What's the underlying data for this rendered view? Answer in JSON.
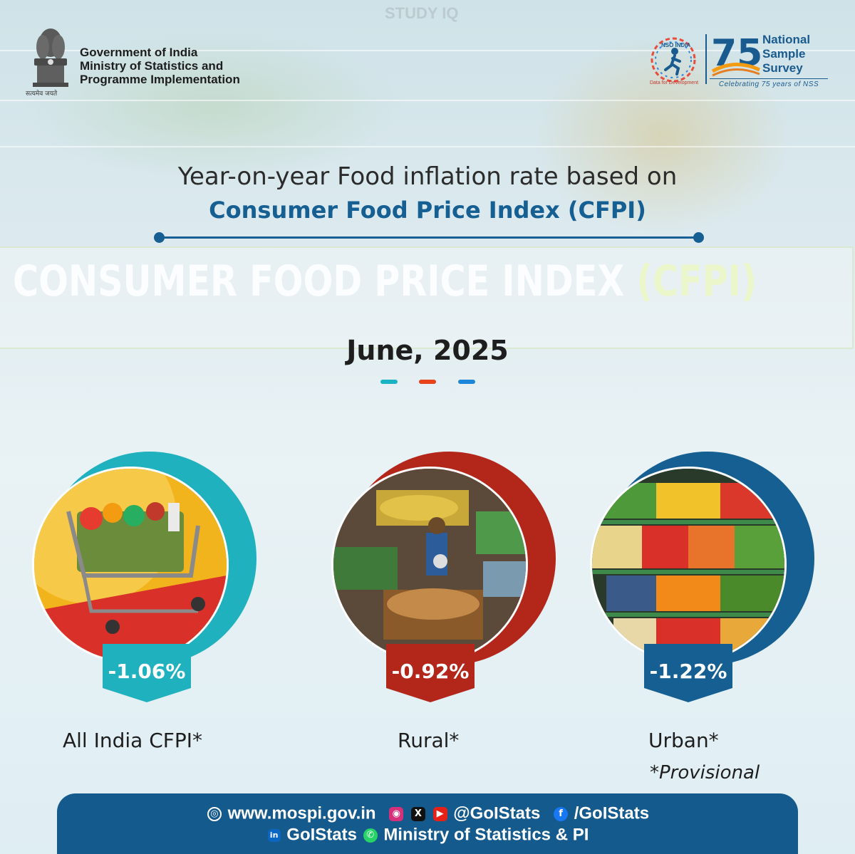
{
  "header": {
    "emblem_caption": "सत्यमेव जयते",
    "gov_lines": [
      "Government of India",
      "Ministry of Statistics and",
      "Programme Implementation"
    ],
    "nso_badge": "NSO INDIA",
    "nso_caption": "Data for Development",
    "nss_number": "75",
    "nss_lines": [
      "National",
      "Sample",
      "Survey"
    ],
    "nss_caption": "Celebrating 75 years of NSS",
    "watermark": "STUDY IQ"
  },
  "title": {
    "line1": "Year-on-year Food inflation rate based on",
    "line2": "Consumer Food Price Index (CFPI)"
  },
  "banner": {
    "main": "CONSUMER FOOD PRICE INDEX ",
    "accent": "(CFPI)"
  },
  "period": "June, 2025",
  "dash_colors": [
    "#19b3c4",
    "#e8431a",
    "#1c86d9"
  ],
  "cards": [
    {
      "value": "-1.06%",
      "label": "All India CFPI*",
      "color": "#1fb1be"
    },
    {
      "value": "-0.92%",
      "label": "Rural*",
      "color": "#b3271b"
    },
    {
      "value": "-1.22%",
      "label": "Urban*",
      "color": "#155f93"
    }
  ],
  "note": "*Provisional",
  "footer": {
    "website": "www.mospi.gov.in",
    "handle": "@GoIStats",
    "facebook": "/GoIStats",
    "linkedin": "GoIStats",
    "whatsapp": "Ministry of Statistics & PI",
    "icons": [
      "globe-icon",
      "instagram-icon",
      "x-icon",
      "youtube-icon",
      "facebook-icon",
      "linkedin-icon",
      "whatsapp-icon"
    ]
  }
}
